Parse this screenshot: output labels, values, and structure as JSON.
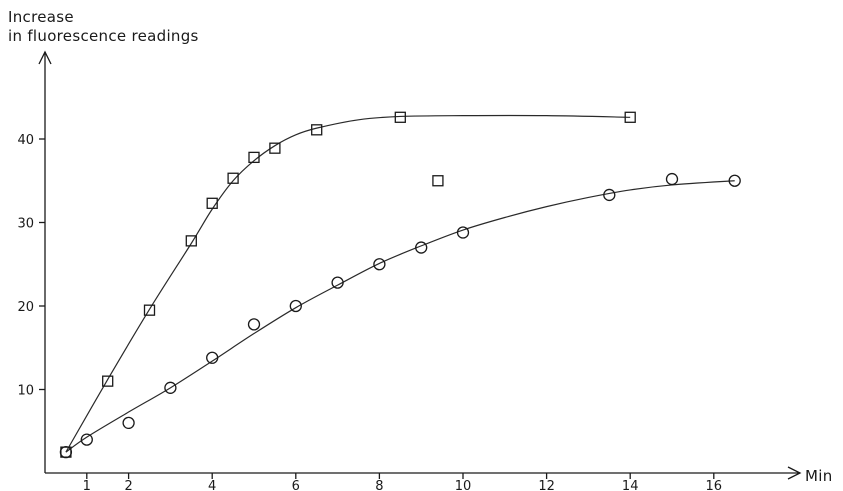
{
  "chart_data": {
    "type": "scatter",
    "ylabel_line1": "Increase",
    "ylabel_line2": "in fluorescence readings",
    "xlabel": "Min",
    "xlim": [
      0,
      18
    ],
    "ylim": [
      0,
      50
    ],
    "x_ticks": [
      1,
      2,
      4,
      6,
      8,
      10,
      12,
      14,
      16
    ],
    "x_tick_labels": [
      "1",
      "2",
      "4",
      "6",
      "8",
      "10",
      "12",
      "14",
      "16"
    ],
    "y_ticks": [
      10,
      20,
      30,
      40
    ],
    "y_tick_labels": [
      "10",
      "20",
      "30",
      "40"
    ],
    "grid": false,
    "series": [
      {
        "marker": "square",
        "x": [
          0.5,
          1.5,
          2.5,
          3.5,
          4.0,
          4.5,
          5.0,
          5.5,
          6.5,
          8.5,
          9.4,
          14.0
        ],
        "y": [
          2.5,
          11.0,
          19.5,
          27.8,
          32.3,
          35.3,
          37.8,
          38.9,
          41.1,
          42.6,
          35.0,
          42.6
        ],
        "fit_curve": [
          [
            0.5,
            2.5
          ],
          [
            1.5,
            11.2
          ],
          [
            2.5,
            19.6
          ],
          [
            3.5,
            27.5
          ],
          [
            4.0,
            31.6
          ],
          [
            4.5,
            35.0
          ],
          [
            5.0,
            37.4
          ],
          [
            5.5,
            39.2
          ],
          [
            6.0,
            40.5
          ],
          [
            6.5,
            41.3
          ],
          [
            7.5,
            42.3
          ],
          [
            8.5,
            42.7
          ],
          [
            10.0,
            42.8
          ],
          [
            12.0,
            42.8
          ],
          [
            14.0,
            42.6
          ]
        ]
      },
      {
        "marker": "circle",
        "x": [
          0.5,
          1.0,
          2.0,
          3.0,
          4.0,
          5.0,
          6.0,
          7.0,
          8.0,
          9.0,
          10.0,
          13.5,
          15.0,
          16.5
        ],
        "y": [
          2.5,
          4.0,
          6.0,
          10.2,
          13.8,
          17.8,
          20.0,
          22.8,
          25.0,
          27.0,
          28.8,
          33.3,
          35.2,
          35.0
        ],
        "fit_curve": [
          [
            0.5,
            2.5
          ],
          [
            1.0,
            4.3
          ],
          [
            2.0,
            7.3
          ],
          [
            3.0,
            10.2
          ],
          [
            4.0,
            13.4
          ],
          [
            5.0,
            16.7
          ],
          [
            6.0,
            19.8
          ],
          [
            7.0,
            22.5
          ],
          [
            8.0,
            25.1
          ],
          [
            9.0,
            27.2
          ],
          [
            10.0,
            29.1
          ],
          [
            11.0,
            30.6
          ],
          [
            12.0,
            31.9
          ],
          [
            13.0,
            33.0
          ],
          [
            14.0,
            33.9
          ],
          [
            15.0,
            34.5
          ],
          [
            16.5,
            35.0
          ]
        ]
      }
    ]
  }
}
